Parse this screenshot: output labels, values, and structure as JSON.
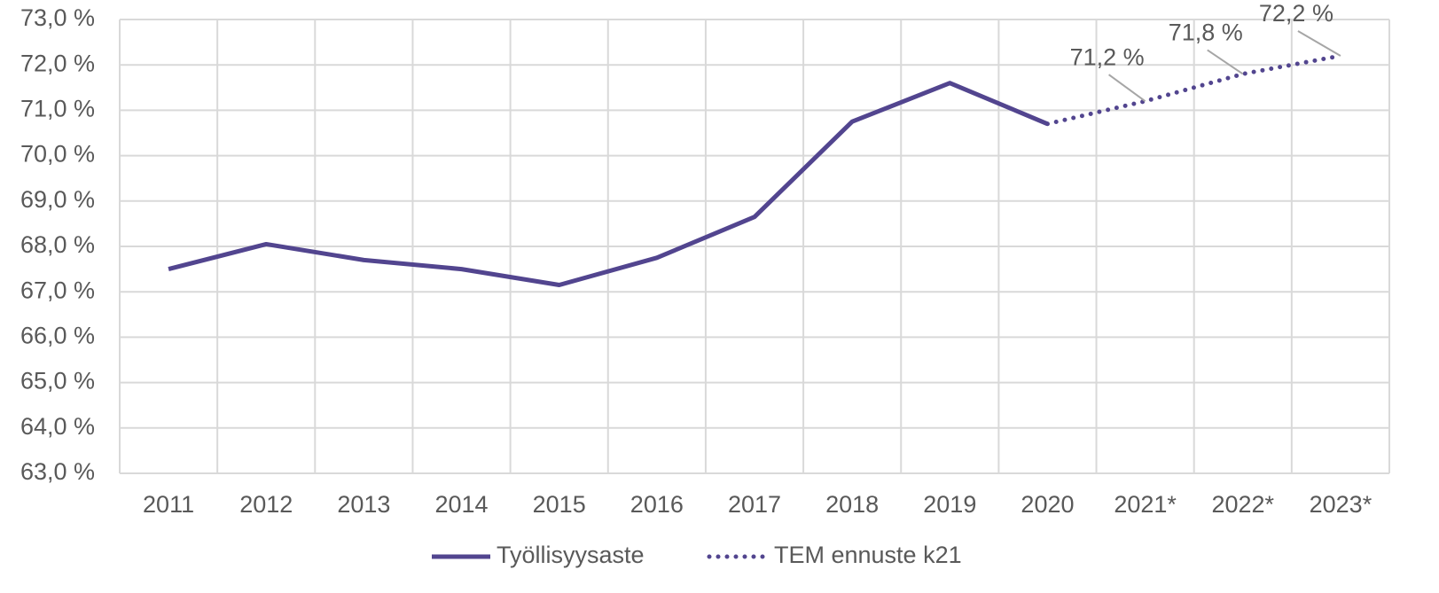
{
  "chart_data": {
    "type": "line",
    "categories": [
      "2011",
      "2012",
      "2013",
      "2014",
      "2015",
      "2016",
      "2017",
      "2018",
      "2019",
      "2020",
      "2021*",
      "2022*",
      "2023*"
    ],
    "series": [
      {
        "name": "Työllisyysaste",
        "color": "#52458f",
        "style": "solid",
        "values": [
          67.5,
          68.05,
          67.7,
          67.5,
          67.15,
          67.75,
          68.65,
          70.75,
          71.6,
          70.7,
          null,
          null,
          null
        ]
      },
      {
        "name": "TEM ennuste k21",
        "color": "#52458f",
        "style": "dotted",
        "values": [
          null,
          null,
          null,
          null,
          null,
          null,
          null,
          null,
          null,
          70.7,
          71.2,
          71.8,
          72.2
        ],
        "value_labels": [
          null,
          null,
          null,
          null,
          null,
          null,
          null,
          null,
          null,
          null,
          "71,2 %",
          "71,8 %",
          "72,2 %"
        ]
      }
    ],
    "ylim": [
      63,
      73
    ],
    "yticks": [
      {
        "value": 63,
        "label": "63,0 %"
      },
      {
        "value": 64,
        "label": "64,0 %"
      },
      {
        "value": 65,
        "label": "65,0 %"
      },
      {
        "value": 66,
        "label": "66,0 %"
      },
      {
        "value": 67,
        "label": "67,0 %"
      },
      {
        "value": 68,
        "label": "68,0 %"
      },
      {
        "value": 69,
        "label": "69,0 %"
      },
      {
        "value": 70,
        "label": "70,0 %"
      },
      {
        "value": 71,
        "label": "71,0 %"
      },
      {
        "value": 72,
        "label": "72,0 %"
      },
      {
        "value": 73,
        "label": "73,0 %"
      }
    ],
    "grid": true,
    "legend": "bottom"
  }
}
